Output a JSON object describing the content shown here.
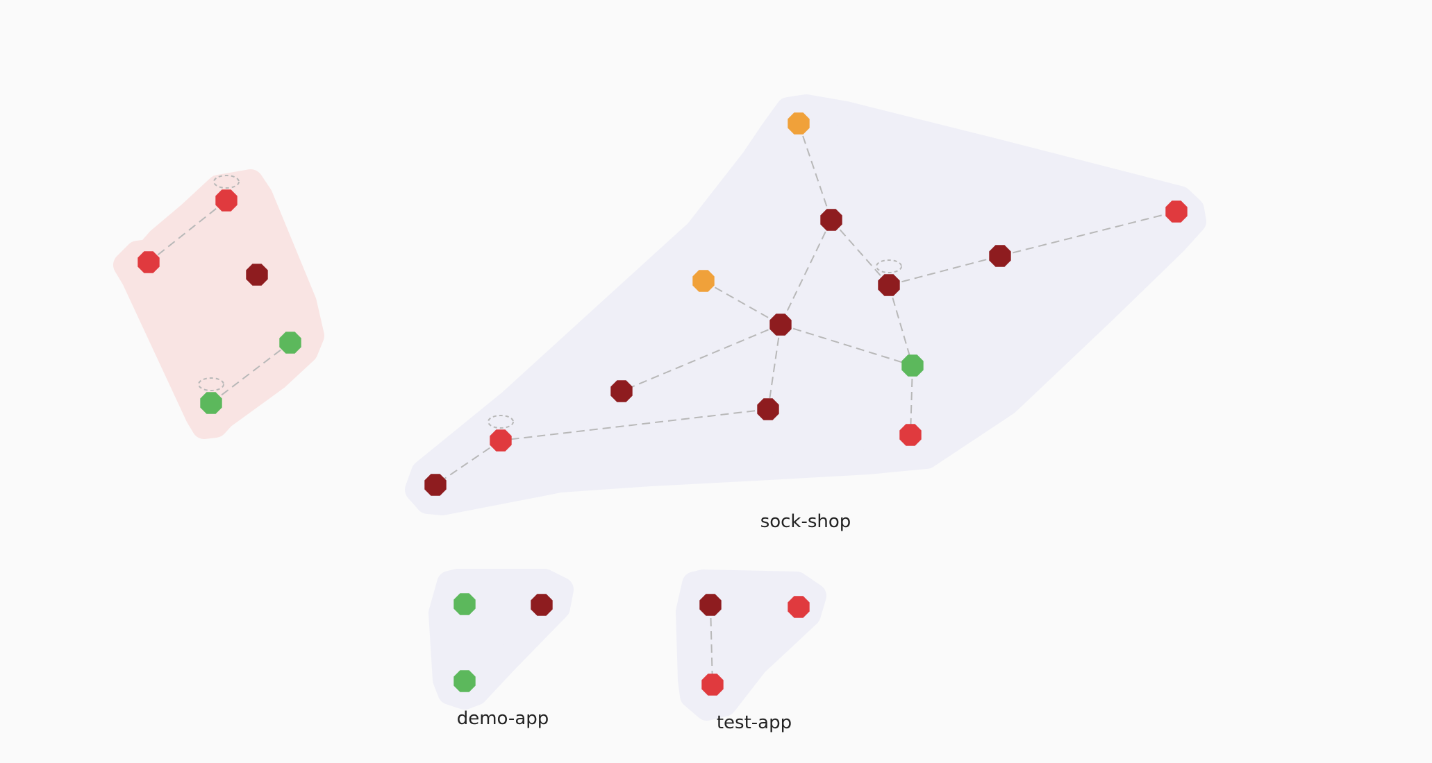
{
  "colors": {
    "background": "#fafafa",
    "group_fill_default": "#efeff7",
    "group_fill_alert": "#f9e4e3",
    "edge": "#b8b8b8",
    "status": {
      "healthy": "#5cb85c",
      "warning": "#f0a13a",
      "error": "#e03a3e",
      "critical": "#8e1c1f"
    }
  },
  "groups": [
    {
      "id": "unlabeled",
      "label": "",
      "fill": "alert",
      "nodes": [
        {
          "id": "u1",
          "status": "error",
          "self_loop": true
        },
        {
          "id": "u2",
          "status": "error"
        },
        {
          "id": "u3",
          "status": "critical"
        },
        {
          "id": "u4",
          "status": "healthy"
        },
        {
          "id": "u5",
          "status": "healthy",
          "self_loop": true
        }
      ],
      "edges": [
        [
          "u1",
          "u2"
        ],
        [
          "u5",
          "u4"
        ]
      ]
    },
    {
      "id": "sock-shop",
      "label": "sock-shop",
      "fill": "default",
      "nodes": [
        {
          "id": "s1",
          "status": "warning"
        },
        {
          "id": "s2",
          "status": "critical"
        },
        {
          "id": "s3",
          "status": "warning"
        },
        {
          "id": "s4",
          "status": "critical",
          "self_loop": true
        },
        {
          "id": "s5",
          "status": "critical"
        },
        {
          "id": "s6",
          "status": "error"
        },
        {
          "id": "s7",
          "status": "critical"
        },
        {
          "id": "s8",
          "status": "healthy"
        },
        {
          "id": "s9",
          "status": "critical"
        },
        {
          "id": "s10",
          "status": "critical"
        },
        {
          "id": "s11",
          "status": "error"
        },
        {
          "id": "s12",
          "status": "error",
          "self_loop": true
        },
        {
          "id": "s13",
          "status": "critical"
        }
      ],
      "edges": [
        [
          "s1",
          "s2"
        ],
        [
          "s2",
          "s4"
        ],
        [
          "s2",
          "s7"
        ],
        [
          "s3",
          "s7"
        ],
        [
          "s4",
          "s5"
        ],
        [
          "s5",
          "s6"
        ],
        [
          "s4",
          "s8"
        ],
        [
          "s7",
          "s8"
        ],
        [
          "s7",
          "s9"
        ],
        [
          "s7",
          "s10"
        ],
        [
          "s10",
          "s12"
        ],
        [
          "s12",
          "s13"
        ],
        [
          "s8",
          "s11"
        ]
      ]
    },
    {
      "id": "demo-app",
      "label": "demo-app",
      "fill": "default",
      "nodes": [
        {
          "id": "d1",
          "status": "healthy"
        },
        {
          "id": "d2",
          "status": "critical"
        },
        {
          "id": "d3",
          "status": "healthy"
        }
      ],
      "edges": []
    },
    {
      "id": "test-app",
      "label": "test-app",
      "fill": "default",
      "nodes": [
        {
          "id": "t1",
          "status": "critical"
        },
        {
          "id": "t2",
          "status": "error"
        },
        {
          "id": "t3",
          "status": "error"
        }
      ],
      "edges": [
        [
          "t1",
          "t3"
        ]
      ]
    }
  ]
}
